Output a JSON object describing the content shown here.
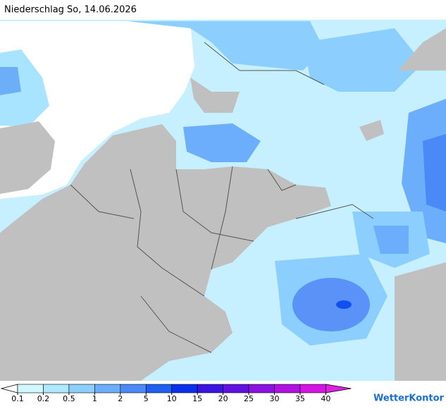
{
  "header": {
    "title": "Niederschlag So, 14.06.2026"
  },
  "legend": {
    "ticks": [
      0.1,
      0.2,
      0.5,
      1,
      2,
      5,
      10,
      15,
      20,
      25,
      30,
      35,
      40
    ],
    "colors": [
      "#d2f8ff",
      "#aee8ff",
      "#8ccfff",
      "#6cadfc",
      "#4b8af6",
      "#1d60f0",
      "#0a30ee",
      "#3c14e2",
      "#6212e0",
      "#8c12e0",
      "#b012e0",
      "#d414e4"
    ],
    "under_color": "#ffffff",
    "over_color": "#e020e0"
  },
  "brand": "WetterKontor"
}
